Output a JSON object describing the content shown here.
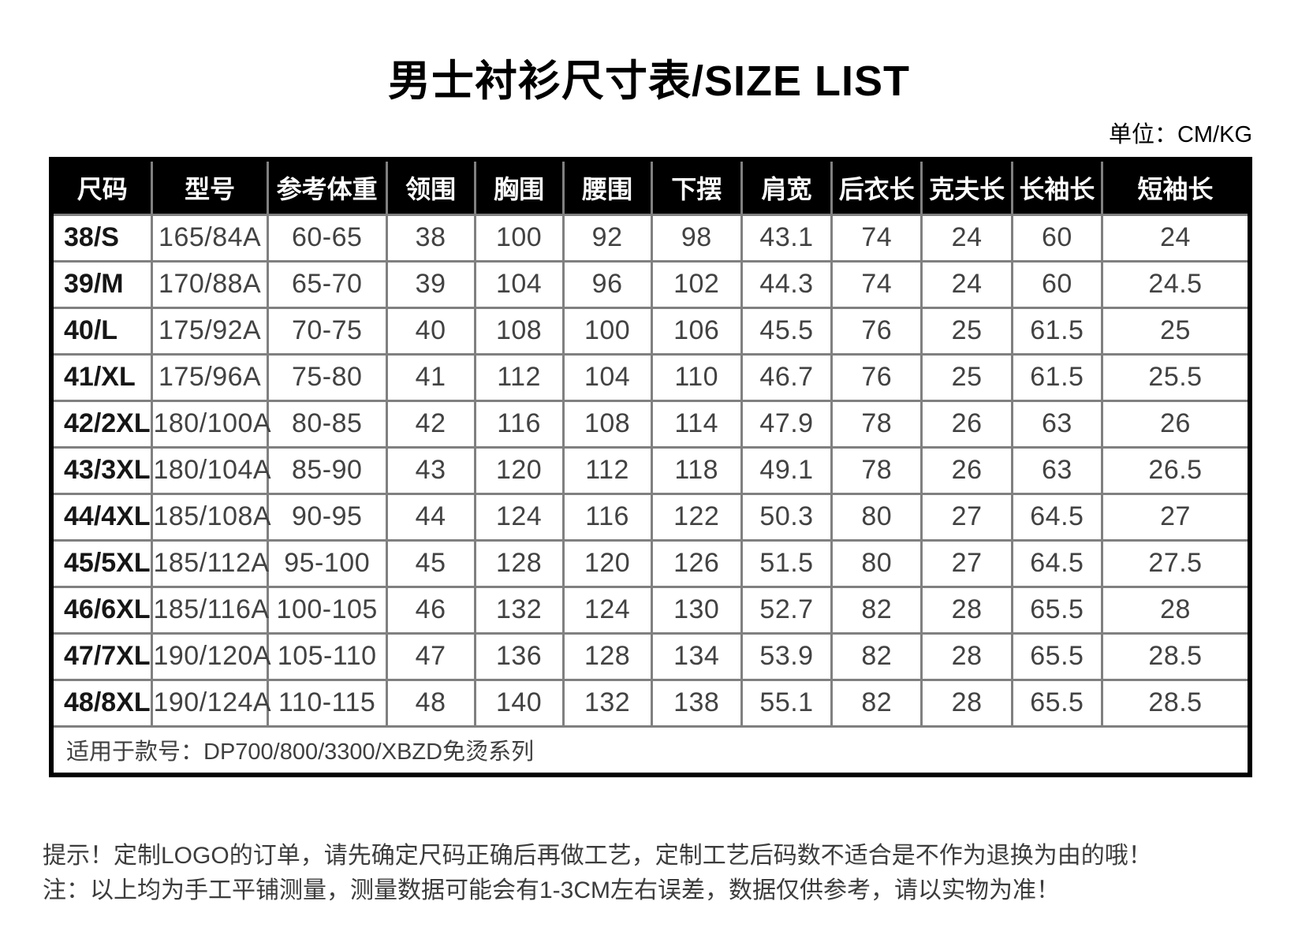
{
  "page": {
    "title": "男士衬衫尺寸表/SIZE LIST",
    "unit_label": "单位：CM/KG"
  },
  "table": {
    "headers": [
      "尺码",
      "型号",
      "参考体重",
      "领围",
      "胸围",
      "腰围",
      "下摆",
      "肩宽",
      "后衣长",
      "克夫长",
      "长袖长",
      "短袖长"
    ],
    "rows": [
      [
        "38/S",
        "165/84A",
        "60-65",
        "38",
        "100",
        "92",
        "98",
        "43.1",
        "74",
        "24",
        "60",
        "24"
      ],
      [
        "39/M",
        "170/88A",
        "65-70",
        "39",
        "104",
        "96",
        "102",
        "44.3",
        "74",
        "24",
        "60",
        "24.5"
      ],
      [
        "40/L",
        "175/92A",
        "70-75",
        "40",
        "108",
        "100",
        "106",
        "45.5",
        "76",
        "25",
        "61.5",
        "25"
      ],
      [
        "41/XL",
        "175/96A",
        "75-80",
        "41",
        "112",
        "104",
        "110",
        "46.7",
        "76",
        "25",
        "61.5",
        "25.5"
      ],
      [
        "42/2XL",
        "180/100A",
        "80-85",
        "42",
        "116",
        "108",
        "114",
        "47.9",
        "78",
        "26",
        "63",
        "26"
      ],
      [
        "43/3XL",
        "180/104A",
        "85-90",
        "43",
        "120",
        "112",
        "118",
        "49.1",
        "78",
        "26",
        "63",
        "26.5"
      ],
      [
        "44/4XL",
        "185/108A",
        "90-95",
        "44",
        "124",
        "116",
        "122",
        "50.3",
        "80",
        "27",
        "64.5",
        "27"
      ],
      [
        "45/5XL",
        "185/112A",
        "95-100",
        "45",
        "128",
        "120",
        "126",
        "51.5",
        "80",
        "27",
        "64.5",
        "27.5"
      ],
      [
        "46/6XL",
        "185/116A",
        "100-105",
        "46",
        "132",
        "124",
        "130",
        "52.7",
        "82",
        "28",
        "65.5",
        "28"
      ],
      [
        "47/7XL",
        "190/120A",
        "105-110",
        "47",
        "136",
        "128",
        "134",
        "53.9",
        "82",
        "28",
        "65.5",
        "28.5"
      ],
      [
        "48/8XL",
        "190/124A",
        "110-115",
        "48",
        "140",
        "132",
        "138",
        "55.1",
        "82",
        "28",
        "65.5",
        "28.5"
      ]
    ],
    "footer_note": "适用于款号：DP700/800/3300/XBZD免烫系列"
  },
  "notes": {
    "line1": "提示！定制LOGO的订单，请先确定尺码正确后再做工艺，定制工艺后码数不适合是不作为退换为由的哦！",
    "line2": "注：以上均为手工平铺测量，测量数据可能会有1-3CM左右误差，数据仅供参考，请以实物为准！"
  }
}
